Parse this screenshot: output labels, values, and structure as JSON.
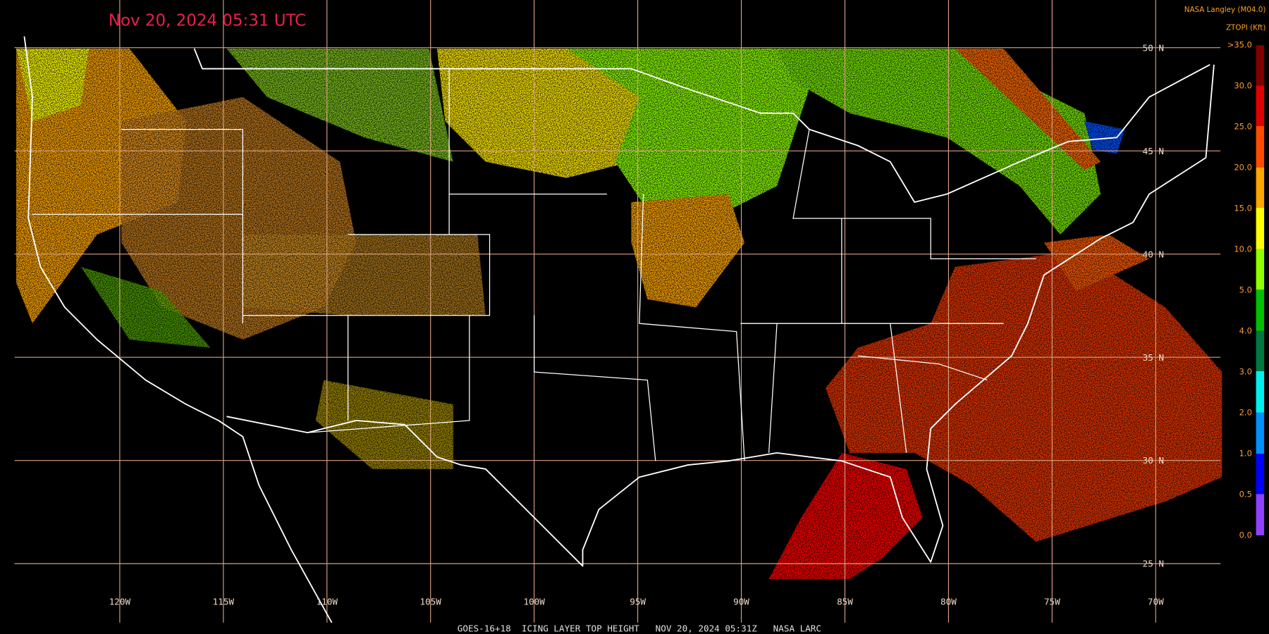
{
  "header": {
    "timestamp": "Nov 20, 2024 05:31 UTC",
    "source": "NASA Langley (M04.0)",
    "units": "ZTOPI (Kft)"
  },
  "legend": {
    "labels": [
      ">35.0",
      "30.0",
      "25.0",
      "20.0",
      "15.0",
      "10.0",
      "5.0",
      "4.0",
      "3.0",
      "2.0",
      "1.0",
      "0.5",
      "0.0"
    ]
  },
  "map": {
    "latitude_labels": [
      "50 N",
      "45 N",
      "40 N",
      "35 N",
      "30 N",
      "25 N"
    ],
    "longitude_labels": [
      "120W",
      "115W",
      "110W",
      "105W",
      "100W",
      "95W",
      "90W",
      "85W",
      "80W",
      "75W",
      "70W"
    ]
  },
  "footer": "GOES-16+18  ICING LAYER TOP HEIGHT   NOV 20, 2024 05:31Z   NASA LARC"
}
